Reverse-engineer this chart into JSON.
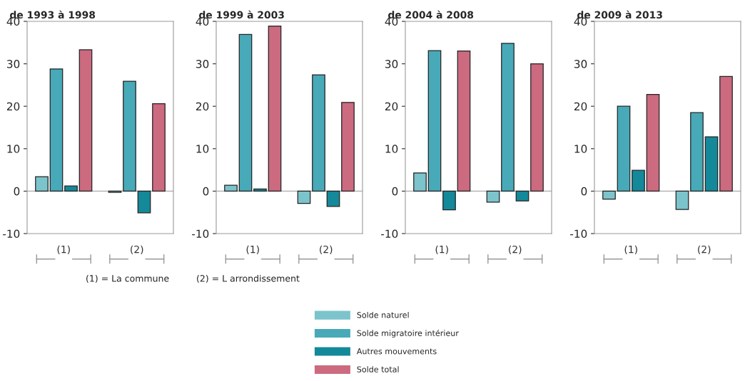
{
  "chart_data": [
    {
      "type": "bar",
      "title": "de 1993 à 1998",
      "categories": [
        "(1)",
        "(2)"
      ],
      "ylim": [
        -10,
        40
      ],
      "yticks": [
        -10,
        0,
        10,
        20,
        30,
        40
      ],
      "grid": false,
      "ref_lines": [
        {
          "axis": "y",
          "value": 0,
          "color": "#aaaaaa"
        }
      ],
      "legend": "bottom",
      "annotations": [
        "(1) = La commune",
        "(2) = L arrondissement"
      ],
      "series": [
        {
          "name": "Solde naturel",
          "color": "#7cc4cc",
          "values": [
            3.4,
            -0.3
          ]
        },
        {
          "name": "Solde migratoire intérieur",
          "color": "#48a9b8",
          "values": [
            28.8,
            25.9
          ]
        },
        {
          "name": "Autres mouvements",
          "color": "#14899a",
          "values": [
            1.2,
            -5.1
          ]
        },
        {
          "name": "Solde total",
          "color": "#cc6a80",
          "values": [
            33.3,
            20.6
          ]
        }
      ]
    },
    {
      "type": "bar",
      "title": "de 1999 à 2003",
      "categories": [
        "(1)",
        "(2)"
      ],
      "ylim": [
        -10,
        40
      ],
      "yticks": [
        -10,
        0,
        10,
        20,
        30,
        40
      ],
      "grid": false,
      "ref_lines": [
        {
          "axis": "y",
          "value": 0,
          "color": "#aaaaaa"
        }
      ],
      "series": [
        {
          "color": "#7cc4cc",
          "values": [
            1.4,
            -2.9
          ]
        },
        {
          "color": "#48a9b8",
          "values": [
            36.9,
            27.4
          ]
        },
        {
          "color": "#14899a",
          "values": [
            0.5,
            -3.6
          ]
        },
        {
          "color": "#cc6a80",
          "values": [
            38.9,
            20.9
          ]
        }
      ]
    },
    {
      "type": "bar",
      "title": "de 2004 à 2008",
      "categories": [
        "(1)",
        "(2)"
      ],
      "ylim": [
        -10,
        40
      ],
      "yticks": [
        -10,
        0,
        10,
        20,
        30,
        40
      ],
      "grid": false,
      "ref_lines": [
        {
          "axis": "y",
          "value": 0,
          "color": "#aaaaaa"
        }
      ],
      "series": [
        {
          "color": "#7cc4cc",
          "values": [
            4.3,
            -2.6
          ]
        },
        {
          "color": "#48a9b8",
          "values": [
            33.1,
            34.8
          ]
        },
        {
          "color": "#14899a",
          "values": [
            -4.4,
            -2.3
          ]
        },
        {
          "color": "#cc6a80",
          "values": [
            33.0,
            30.0
          ]
        }
      ]
    },
    {
      "type": "bar",
      "title": "de 2009 à 2013",
      "categories": [
        "(1)",
        "(2)"
      ],
      "ylim": [
        -10,
        40
      ],
      "yticks": [
        -10,
        0,
        10,
        20,
        30,
        40
      ],
      "grid": false,
      "ref_lines": [
        {
          "axis": "y",
          "value": 0,
          "color": "#aaaaaa"
        }
      ],
      "series": [
        {
          "color": "#7cc4cc",
          "values": [
            -1.9,
            -4.3
          ]
        },
        {
          "color": "#48a9b8",
          "values": [
            20.0,
            18.5
          ]
        },
        {
          "color": "#14899a",
          "values": [
            4.9,
            12.8
          ]
        },
        {
          "color": "#cc6a80",
          "values": [
            22.8,
            27.0
          ]
        }
      ]
    }
  ]
}
